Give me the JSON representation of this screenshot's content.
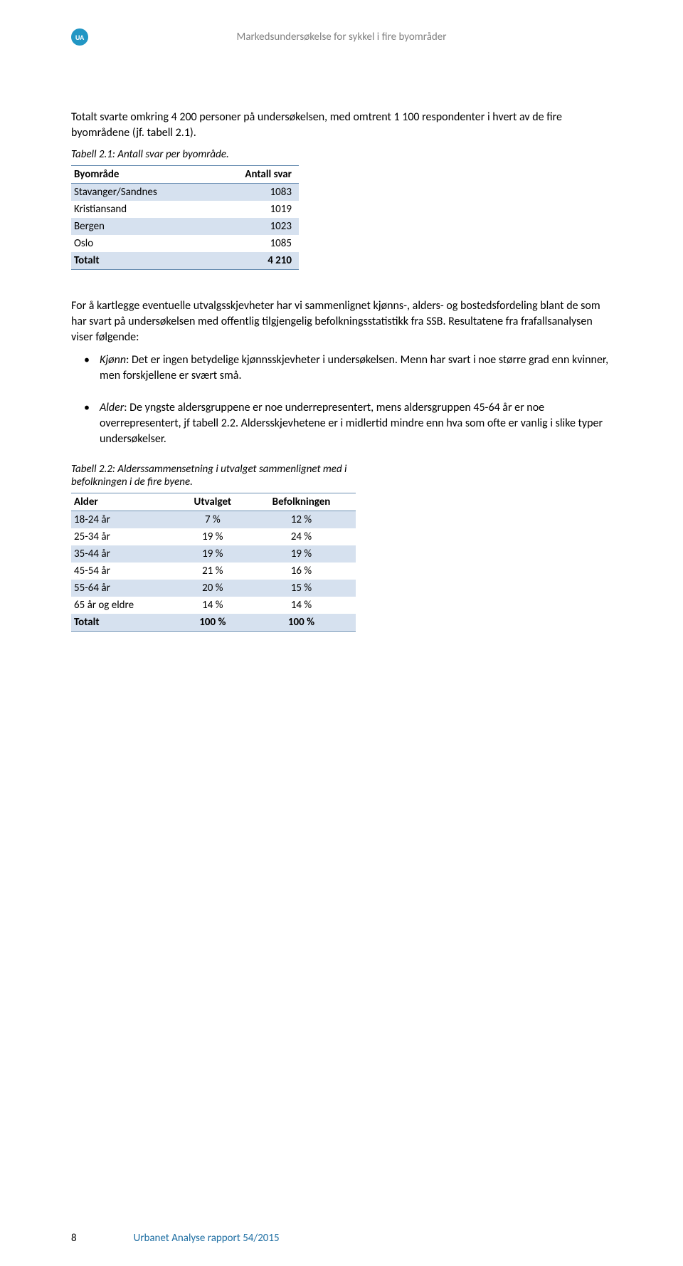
{
  "header": {
    "logo_text": "UA",
    "title": "Markedsundersøkelse for sykkel i fire byområder"
  },
  "intro": "Totalt svarte omkring 4 200 personer på undersøkelsen, med omtrent 1 100 respondenter i hvert av de fire byområdene (jf. tabell 2.1).",
  "table1": {
    "caption": "Tabell 2.1: Antall svar per byområde.",
    "columns": [
      "Byområde",
      "Antall svar"
    ],
    "rows": [
      {
        "label": "Stavanger/Sandnes",
        "value": "1083",
        "striped": true
      },
      {
        "label": "Kristiansand",
        "value": "1019",
        "striped": false
      },
      {
        "label": "Bergen",
        "value": "1023",
        "striped": true
      },
      {
        "label": "Oslo",
        "value": "1085",
        "striped": false
      },
      {
        "label": "Totalt",
        "value": "4 210",
        "striped": true,
        "bold": true
      }
    ],
    "colors": {
      "stripe_bg": "#d6e1ef",
      "border": "#6b8fb3"
    }
  },
  "middle_para": "For å kartlegge eventuelle utvalgsskjevheter har vi sammenlignet kjønns-, alders- og bostedsfordeling blant de som har svart på undersøkelsen med offentlig tilgjengelig befolkningsstatistikk fra SSB. Resultatene fra frafallsanalysen viser følgende:",
  "bullets": {
    "b1_label": "Kjønn",
    "b1_text": ": Det er ingen betydelige kjønnsskjevheter i undersøkelsen. Menn har svart i noe større grad enn kvinner, men forskjellene er svært små.",
    "b2_label": "Alder",
    "b2_text": ": De yngste aldersgruppene er noe underrepresentert, mens aldersgruppen 45-64 år er noe overrepresentert, jf tabell 2.2. Aldersskjevhetene er i midlertid mindre enn hva som ofte er vanlig i slike typer undersøkelser."
  },
  "table2": {
    "caption": "Tabell 2.2: Alderssammensetning i utvalget sammenlignet med i befolkningen i de fire byene.",
    "columns": [
      "Alder",
      "Utvalget",
      "Befolkningen"
    ],
    "rows": [
      {
        "label": "18-24 år",
        "c1": "7 %",
        "c2": "12 %",
        "striped": true
      },
      {
        "label": "25-34 år",
        "c1": "19 %",
        "c2": "24 %",
        "striped": false
      },
      {
        "label": "35-44 år",
        "c1": "19 %",
        "c2": "19 %",
        "striped": true
      },
      {
        "label": "45-54 år",
        "c1": "21 %",
        "c2": "16 %",
        "striped": false
      },
      {
        "label": "55-64 år",
        "c1": "20 %",
        "c2": "15 %",
        "striped": true
      },
      {
        "label": "65 år og eldre",
        "c1": "14 %",
        "c2": "14 %",
        "striped": false
      },
      {
        "label": "Totalt",
        "c1": "100 %",
        "c2": "100 %",
        "striped": true,
        "bold": true
      }
    ]
  },
  "footer": {
    "page": "8",
    "text": "Urbanet Analyse rapport 54/2015"
  }
}
